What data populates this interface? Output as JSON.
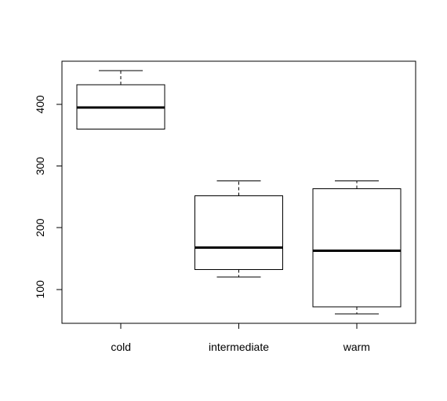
{
  "chart_data": {
    "type": "box",
    "categories": [
      "cold",
      "intermediate",
      "warm"
    ],
    "boxes": [
      {
        "category": "cold",
        "min": 360,
        "q1": 360,
        "median": 395,
        "q3": 432,
        "max": 455
      },
      {
        "category": "intermediate",
        "min": 120,
        "q1": 132,
        "median": 168,
        "q3": 252,
        "max": 276
      },
      {
        "category": "warm",
        "min": 60,
        "q1": 72,
        "median": 163,
        "q3": 263,
        "max": 276
      }
    ],
    "y_ticks": [
      "100",
      "200",
      "300",
      "400"
    ],
    "ylim": [
      45,
      470
    ],
    "title": "",
    "xlabel": "",
    "ylabel": "",
    "grid": false,
    "colors": {
      "box_fill": "#ffffff",
      "stroke": "#000000"
    }
  }
}
